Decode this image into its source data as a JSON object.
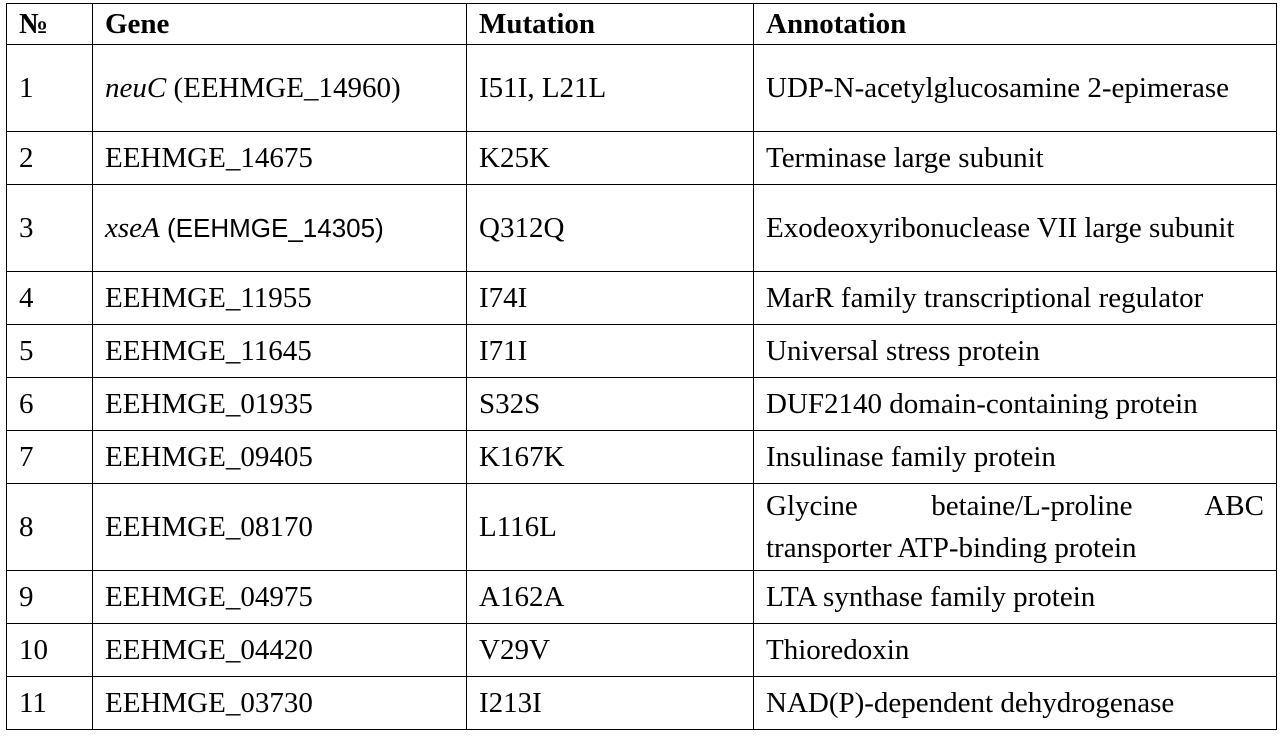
{
  "table": {
    "headers": {
      "num": "№",
      "gene": "Gene",
      "mutation": "Mutation",
      "annotation": "Annotation"
    },
    "rows": [
      {
        "num": "1",
        "gene_italic": "neuC",
        "gene_rest": " (EEHMGE_14960)",
        "mutation": "I51I, L21L",
        "annotation": "UDP-N-acetylglucosamine 2-epimerase"
      },
      {
        "num": "2",
        "gene": "EEHMGE_14675",
        "mutation": "K25K",
        "annotation": "Terminase large subunit"
      },
      {
        "num": "3",
        "gene_italic": "xseA",
        "gene_rest": " (EEHMGE_14305)",
        "mutation": "Q312Q",
        "annotation": "Exodeoxyribonuclease VII large subunit"
      },
      {
        "num": "4",
        "gene": "EEHMGE_11955",
        "mutation": "I74I",
        "annotation": "MarR family transcriptional regulator"
      },
      {
        "num": "5",
        "gene": "EEHMGE_11645",
        "mutation": "I71I",
        "annotation": "Universal stress protein"
      },
      {
        "num": "6",
        "gene": "EEHMGE_01935",
        "mutation": "S32S",
        "annotation": "DUF2140 domain-containing protein"
      },
      {
        "num": "7",
        "gene": "EEHMGE_09405",
        "mutation": "K167K",
        "annotation": "Insulinase family protein"
      },
      {
        "num": "8",
        "gene": "EEHMGE_08170",
        "mutation": "L116L",
        "annotation": "Glycine betaine/L-proline ABC transporter ATP-binding protein"
      },
      {
        "num": "9",
        "gene": "EEHMGE_04975",
        "mutation": "A162A",
        "annotation": "LTA synthase family protein"
      },
      {
        "num": "10",
        "gene": "EEHMGE_04420",
        "mutation": "V29V",
        "annotation": "Thioredoxin"
      },
      {
        "num": "11",
        "gene": "EEHMGE_03730",
        "mutation": "I213I",
        "annotation": "NAD(P)-dependent dehydrogenase"
      }
    ]
  }
}
